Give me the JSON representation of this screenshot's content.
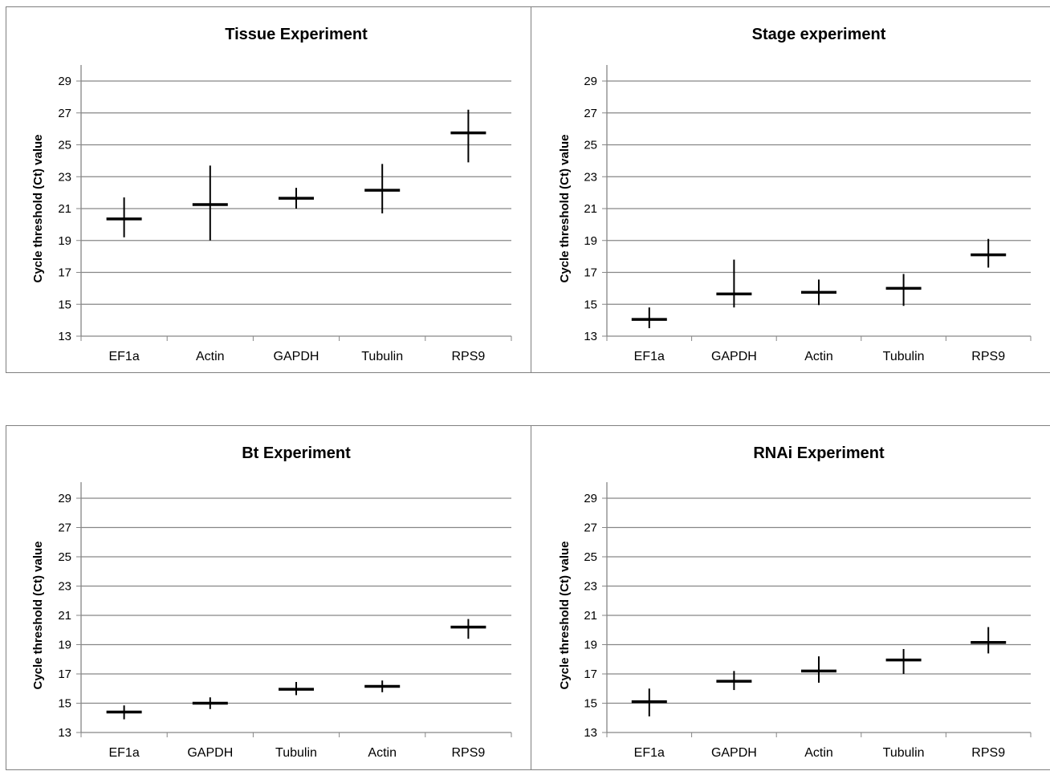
{
  "chart_data": [
    {
      "type": "scatter",
      "title": "Tissue Experiment",
      "ylabel": "Cycle threshold (Ct) value",
      "categories": [
        "EF1a",
        "Actin",
        "GAPDH",
        "Tubulin",
        "RPS9"
      ],
      "values": [
        20.35,
        21.25,
        21.65,
        22.15,
        25.75
      ],
      "lower": [
        19.2,
        19.0,
        21.0,
        20.7,
        23.9
      ],
      "upper": [
        21.7,
        23.7,
        22.3,
        23.8,
        27.2
      ],
      "ylim": [
        13,
        29
      ],
      "yticks": [
        13,
        15,
        17,
        19,
        21,
        23,
        25,
        27,
        29
      ],
      "grid": true
    },
    {
      "type": "scatter",
      "title": "Stage experiment",
      "ylabel": "Cycle threshold (Ct) value",
      "categories": [
        "EF1a",
        "GAPDH",
        "Actin",
        "Tubulin",
        "RPS9"
      ],
      "values": [
        14.05,
        15.65,
        15.75,
        16.0,
        18.1
      ],
      "lower": [
        13.5,
        14.8,
        14.95,
        14.9,
        17.3
      ],
      "upper": [
        14.8,
        17.8,
        16.55,
        16.9,
        19.1
      ],
      "ylim": [
        13,
        29
      ],
      "yticks": [
        13,
        15,
        17,
        19,
        21,
        23,
        25,
        27,
        29
      ],
      "grid": true
    },
    {
      "type": "scatter",
      "title": "Bt Experiment",
      "ylabel": "Cycle threshold (Ct) value",
      "categories": [
        "EF1a",
        "GAPDH",
        "Tubulin",
        "Actin",
        "RPS9"
      ],
      "values": [
        14.4,
        15.0,
        15.95,
        16.15,
        20.2
      ],
      "lower": [
        13.9,
        14.6,
        15.55,
        15.75,
        19.4
      ],
      "upper": [
        14.85,
        15.4,
        16.45,
        16.55,
        20.75
      ],
      "ylim": [
        13,
        29
      ],
      "yticks": [
        13,
        15,
        17,
        19,
        21,
        23,
        25,
        27,
        29
      ],
      "grid": true
    },
    {
      "type": "scatter",
      "title": "RNAi Experiment",
      "ylabel": "Cycle threshold (Ct) value",
      "categories": [
        "EF1a",
        "GAPDH",
        "Actin",
        "Tubulin",
        "RPS9"
      ],
      "values": [
        15.1,
        16.5,
        17.2,
        17.95,
        19.15
      ],
      "lower": [
        14.1,
        15.9,
        16.4,
        17.0,
        18.4
      ],
      "upper": [
        16.0,
        17.2,
        18.2,
        18.7,
        20.2
      ],
      "ylim": [
        13,
        29
      ],
      "yticks": [
        13,
        15,
        17,
        19,
        21,
        23,
        25,
        27,
        29
      ],
      "grid": true
    }
  ],
  "colors": {
    "grid": "#868686",
    "axis": "#868686",
    "marker": "#000000"
  }
}
